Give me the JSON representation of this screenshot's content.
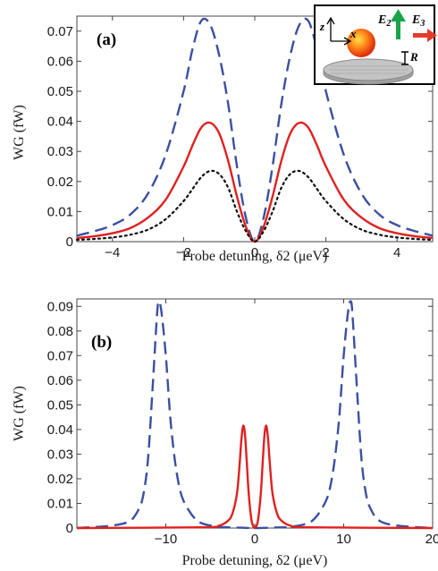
{
  "chart_data": [
    {
      "type": "line",
      "panel_label": "(a)",
      "xlabel": "Probe detuning, δ2 (μeV)",
      "ylabel": "WG (fW)",
      "xlim": [
        -5,
        5
      ],
      "ylim": [
        0,
        0.075
      ],
      "xticks": [
        -4,
        -2,
        0,
        2,
        4
      ],
      "xtick_labels": [
        "−4",
        "−2",
        "0",
        "2",
        "4"
      ],
      "yticks": [
        0,
        0.01,
        0.02,
        0.03,
        0.04,
        0.05,
        0.06,
        0.07
      ],
      "ytick_labels": [
        "0",
        "0.01",
        "0.02",
        "0.03",
        "0.04",
        "0.05",
        "0.06",
        "0.07"
      ],
      "series": [
        {
          "style": "dashed",
          "color": "#3b4fa0",
          "x": [
            -5,
            -4.5,
            -4,
            -3.5,
            -3,
            -2.5,
            -2,
            -1.75,
            -1.5,
            -1.25,
            -1,
            -0.75,
            -0.5,
            -0.25,
            0,
            0.25,
            0.5,
            0.75,
            1,
            1.25,
            1.5,
            1.75,
            2,
            2.5,
            3,
            3.5,
            4,
            4.5,
            5
          ],
          "y": [
            0.002,
            0.0035,
            0.0055,
            0.009,
            0.016,
            0.029,
            0.05,
            0.064,
            0.0735,
            0.072,
            0.062,
            0.046,
            0.025,
            0.008,
            0.0,
            0.008,
            0.025,
            0.046,
            0.062,
            0.072,
            0.0735,
            0.064,
            0.05,
            0.029,
            0.016,
            0.009,
            0.0055,
            0.0035,
            0.002
          ]
        },
        {
          "style": "solid",
          "color": "#e02020",
          "x": [
            -5,
            -4.5,
            -4,
            -3.5,
            -3,
            -2.5,
            -2,
            -1.75,
            -1.5,
            -1.25,
            -1,
            -0.75,
            -0.5,
            -0.25,
            0,
            0.25,
            0.5,
            0.75,
            1,
            1.25,
            1.5,
            1.75,
            2,
            2.5,
            3,
            3.5,
            4,
            4.5,
            5
          ],
          "y": [
            0.0012,
            0.0018,
            0.0028,
            0.0045,
            0.008,
            0.014,
            0.025,
            0.032,
            0.038,
            0.0395,
            0.036,
            0.027,
            0.015,
            0.005,
            0.0,
            0.005,
            0.015,
            0.027,
            0.036,
            0.0395,
            0.038,
            0.032,
            0.025,
            0.014,
            0.008,
            0.0045,
            0.0028,
            0.0018,
            0.0012
          ]
        },
        {
          "style": "dotted",
          "color": "#111111",
          "x": [
            -5,
            -4.5,
            -4,
            -3.5,
            -3,
            -2.5,
            -2,
            -1.75,
            -1.5,
            -1.25,
            -1,
            -0.75,
            -0.5,
            -0.25,
            0,
            0.25,
            0.5,
            0.75,
            1,
            1.25,
            1.5,
            1.75,
            2,
            2.5,
            3,
            3.5,
            4,
            4.5,
            5
          ],
          "y": [
            0.0006,
            0.0009,
            0.0014,
            0.0023,
            0.004,
            0.0075,
            0.0135,
            0.0175,
            0.0215,
            0.0235,
            0.0225,
            0.018,
            0.01,
            0.0035,
            0.0,
            0.0035,
            0.01,
            0.018,
            0.0225,
            0.0235,
            0.0215,
            0.0175,
            0.0135,
            0.0075,
            0.004,
            0.0023,
            0.0014,
            0.0009,
            0.0006
          ]
        }
      ],
      "inset": {
        "z_label": "z",
        "x_label": "x",
        "e2_label": "E",
        "e2_sub": "2",
        "e3_label": "E",
        "e3_sub": "3",
        "r_label": "R",
        "arrow_green": "#1aa34a",
        "arrow_red": "#e63a2a"
      }
    },
    {
      "type": "line",
      "panel_label": "(b)",
      "xlabel": "Probe detuning, δ2 (μeV)",
      "ylabel": "WG (fW)",
      "xlim": [
        -20,
        20
      ],
      "ylim": [
        0,
        0.093
      ],
      "xticks": [
        -10,
        0,
        10,
        20
      ],
      "xtick_labels": [
        "−10",
        "0",
        "10",
        "20"
      ],
      "yticks": [
        0,
        0.01,
        0.02,
        0.03,
        0.04,
        0.05,
        0.06,
        0.07,
        0.08,
        0.09
      ],
      "ytick_labels": [
        "0",
        "0.01",
        "0.02",
        "0.03",
        "0.04",
        "0.05",
        "0.06",
        "0.07",
        "0.08",
        "0.09"
      ],
      "series": [
        {
          "style": "dashed",
          "color": "#3b4fa0",
          "x": [
            -20,
            -16,
            -14,
            -13,
            -12.5,
            -12,
            -11.5,
            -11,
            -10.8,
            -10.5,
            -10,
            -9.5,
            -9,
            -8.5,
            -8,
            -7,
            -6,
            -4,
            -2,
            0,
            2,
            4,
            6,
            7,
            8,
            8.5,
            9,
            9.5,
            10,
            10.5,
            10.8,
            11,
            11.5,
            12,
            12.5,
            13,
            14,
            16,
            20
          ],
          "y": [
            0.0,
            0.001,
            0.003,
            0.008,
            0.014,
            0.028,
            0.056,
            0.086,
            0.092,
            0.088,
            0.07,
            0.045,
            0.028,
            0.017,
            0.011,
            0.005,
            0.002,
            0.0005,
            0.0002,
            0.0,
            0.0002,
            0.0005,
            0.002,
            0.005,
            0.011,
            0.017,
            0.028,
            0.045,
            0.07,
            0.088,
            0.092,
            0.086,
            0.056,
            0.028,
            0.014,
            0.008,
            0.003,
            0.001,
            0.0
          ]
        },
        {
          "style": "solid",
          "color": "#e02020",
          "x": [
            -20,
            -6,
            -4,
            -3,
            -2.5,
            -2,
            -1.7,
            -1.5,
            -1.3,
            -1.1,
            -0.9,
            -0.7,
            -0.5,
            -0.3,
            0,
            0.3,
            0.5,
            0.7,
            0.9,
            1.1,
            1.3,
            1.5,
            1.7,
            2,
            2.5,
            3,
            4,
            6,
            20
          ],
          "y": [
            0.0,
            0.0003,
            0.001,
            0.003,
            0.006,
            0.014,
            0.026,
            0.036,
            0.0415,
            0.038,
            0.027,
            0.015,
            0.007,
            0.002,
            0.0,
            0.002,
            0.007,
            0.015,
            0.027,
            0.038,
            0.0415,
            0.036,
            0.026,
            0.014,
            0.006,
            0.003,
            0.001,
            0.0003,
            0.0
          ]
        }
      ]
    }
  ]
}
